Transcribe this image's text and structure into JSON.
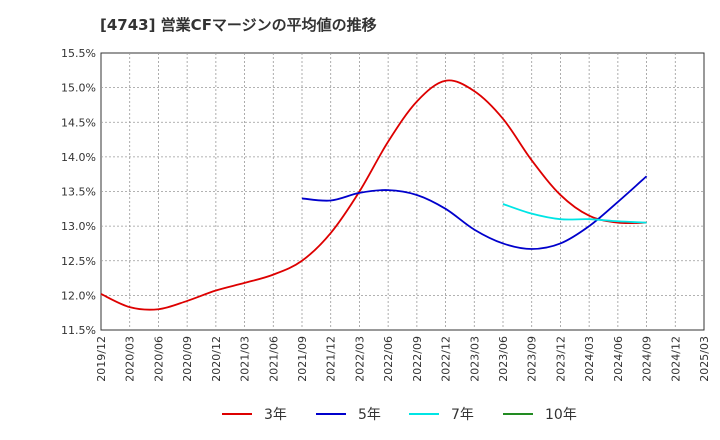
{
  "chart_data": {
    "type": "line",
    "title": "[4743]  営業CFマージンの平均値の推移",
    "xlabel": "",
    "ylabel": "",
    "x_ticks": [
      "2019/12",
      "2020/03",
      "2020/06",
      "2020/09",
      "2020/12",
      "2021/03",
      "2021/06",
      "2021/09",
      "2021/12",
      "2022/03",
      "2022/06",
      "2022/09",
      "2022/12",
      "2023/03",
      "2023/06",
      "2023/09",
      "2023/12",
      "2024/03",
      "2024/06",
      "2024/09",
      "2024/12",
      "2025/03"
    ],
    "y_ticks": [
      "11.5%",
      "12.0%",
      "12.5%",
      "13.0%",
      "13.5%",
      "14.0%",
      "14.5%",
      "15.0%",
      "15.5%"
    ],
    "ylim": [
      11.5,
      15.5
    ],
    "grid": true,
    "legend_position": "bottom",
    "series": [
      {
        "name": "3年",
        "color": "#dd0000",
        "x": [
          "2019/12",
          "2020/03",
          "2020/06",
          "2020/09",
          "2020/12",
          "2021/03",
          "2021/06",
          "2021/09",
          "2021/12",
          "2022/03",
          "2022/06",
          "2022/09",
          "2022/12",
          "2023/03",
          "2023/06",
          "2023/09",
          "2023/12",
          "2024/03",
          "2024/06",
          "2024/09"
        ],
        "values": [
          12.02,
          11.83,
          11.8,
          11.92,
          12.07,
          12.18,
          12.3,
          12.5,
          12.9,
          13.5,
          14.22,
          14.8,
          15.1,
          14.95,
          14.55,
          13.95,
          13.45,
          13.15,
          13.05,
          13.05
        ]
      },
      {
        "name": "5年",
        "color": "#0000cc",
        "x": [
          "2021/09",
          "2021/12",
          "2022/03",
          "2022/06",
          "2022/09",
          "2022/12",
          "2023/03",
          "2023/06",
          "2023/09",
          "2023/12",
          "2024/03",
          "2024/06",
          "2024/09"
        ],
        "values": [
          13.4,
          13.37,
          13.48,
          13.52,
          13.45,
          13.25,
          12.95,
          12.75,
          12.67,
          12.75,
          13.0,
          13.35,
          13.72
        ]
      },
      {
        "name": "7年",
        "color": "#00e5e5",
        "x": [
          "2023/06",
          "2023/09",
          "2023/12",
          "2024/03",
          "2024/06",
          "2024/09"
        ],
        "values": [
          13.32,
          13.18,
          13.1,
          13.1,
          13.07,
          13.05
        ]
      },
      {
        "name": "10年",
        "color": "#228b22",
        "x": [],
        "values": []
      }
    ]
  }
}
